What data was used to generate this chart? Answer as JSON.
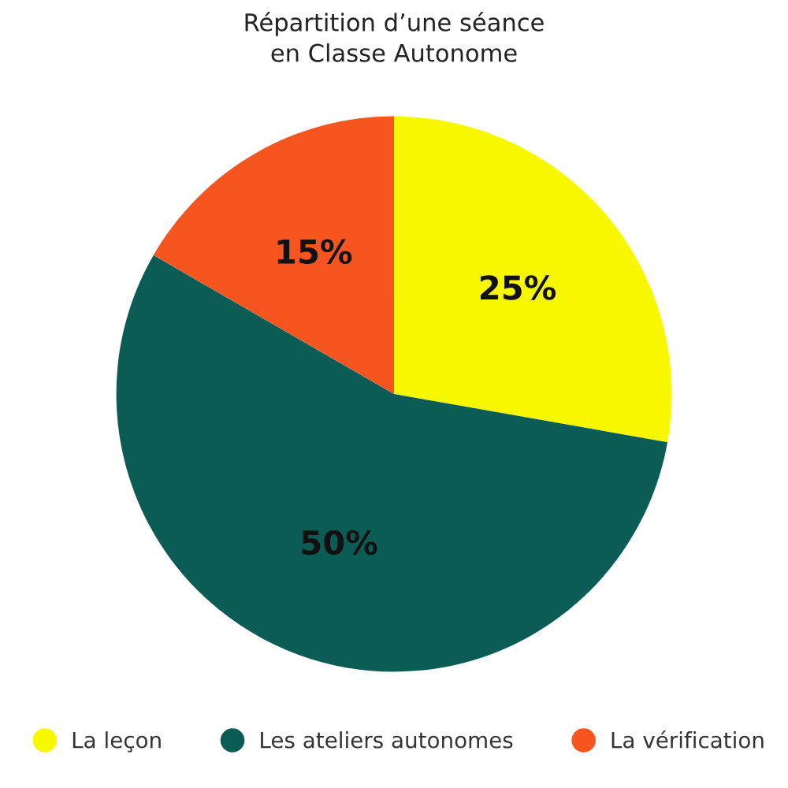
{
  "chart_data": {
    "type": "pie",
    "title": "Répartition d’une séance\nen Classe Autonome",
    "categories": [
      "La leçon",
      "Les ateliers autonomes",
      "La vérification"
    ],
    "values": [
      25,
      50,
      15
    ],
    "colors": [
      "#f7f700",
      "#0a5c54",
      "#f75520"
    ],
    "value_labels": [
      "25%",
      "50%",
      "15%"
    ],
    "legend": "bottom"
  }
}
